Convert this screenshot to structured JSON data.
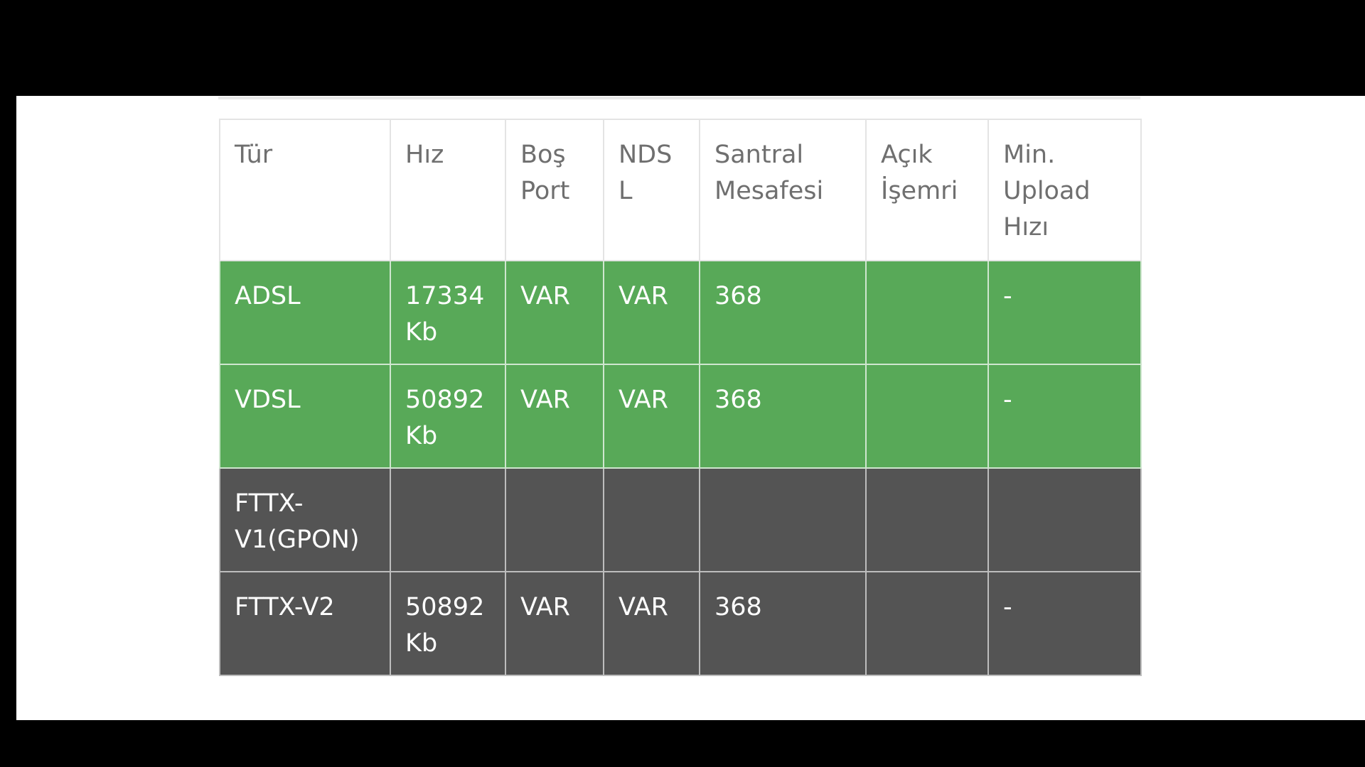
{
  "colors": {
    "background_outer": "#000000",
    "panel": "#ffffff",
    "header_text": "#6f6f6f",
    "row_available": "#58a958",
    "row_unavailable": "#545454",
    "row_text": "#ffffff",
    "grid_line": "#e4e4e4"
  },
  "table": {
    "headers": [
      [
        "Tür"
      ],
      [
        "Hız"
      ],
      [
        "Boş",
        "Port"
      ],
      [
        "NDSL"
      ],
      [
        "Santral",
        "Mesafesi"
      ],
      [
        "Açık",
        "İşemri"
      ],
      [
        "Min.",
        "Upload",
        "Hızı"
      ]
    ],
    "rows": [
      {
        "status": "available",
        "cells": [
          [
            "ADSL"
          ],
          [
            "17334",
            "Kb"
          ],
          [
            "VAR"
          ],
          [
            "VAR"
          ],
          [
            "368"
          ],
          [
            ""
          ],
          [
            "-"
          ]
        ]
      },
      {
        "status": "available",
        "cells": [
          [
            "VDSL"
          ],
          [
            "50892",
            "Kb"
          ],
          [
            "VAR"
          ],
          [
            "VAR"
          ],
          [
            "368"
          ],
          [
            ""
          ],
          [
            "-"
          ]
        ]
      },
      {
        "status": "unavailable",
        "cells": [
          [
            "FTTX-",
            "V1(GPON)"
          ],
          [
            ""
          ],
          [
            ""
          ],
          [
            ""
          ],
          [
            ""
          ],
          [
            ""
          ],
          [
            ""
          ]
        ]
      },
      {
        "status": "unavailable",
        "cells": [
          [
            "FTTX-V2"
          ],
          [
            "50892",
            "Kb"
          ],
          [
            "VAR"
          ],
          [
            "VAR"
          ],
          [
            "368"
          ],
          [
            ""
          ],
          [
            "-"
          ]
        ]
      }
    ]
  }
}
